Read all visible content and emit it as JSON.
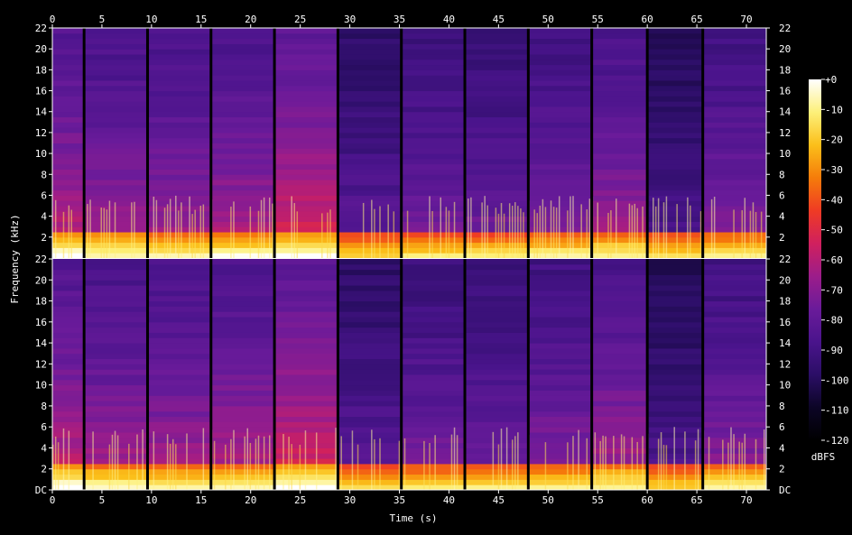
{
  "chart_data": {
    "type": "heatmap",
    "title": "",
    "xlabel": "Time (s)",
    "ylabel": "Frequency (kHz)",
    "colorbar_label": "dBFS",
    "x_range": [
      0,
      72
    ],
    "x_ticks": [
      0,
      5,
      10,
      15,
      20,
      25,
      30,
      35,
      40,
      45,
      50,
      55,
      60,
      65,
      70
    ],
    "x_tick_labels": [
      "0",
      "5",
      "10",
      "15",
      "20",
      "25",
      "30",
      "35",
      "40",
      "45",
      "50",
      "55",
      "60",
      "65",
      "70"
    ],
    "y_range_khz": [
      0,
      22
    ],
    "y_ticks": [
      0,
      2,
      4,
      6,
      8,
      10,
      12,
      14,
      16,
      18,
      20,
      22
    ],
    "y_tick_labels_top": [
      "",
      "2",
      "4",
      "6",
      "8",
      "10",
      "12",
      "14",
      "16",
      "18",
      "20",
      "22"
    ],
    "y_tick_labels_bottom": [
      "DC",
      "2",
      "4",
      "6",
      "8",
      "10",
      "12",
      "14",
      "16",
      "18",
      "20",
      "22"
    ],
    "channels": 2,
    "colorbar_range": [
      -120,
      0
    ],
    "colorbar_ticks": [
      0,
      -10,
      -20,
      -30,
      -40,
      -50,
      -60,
      -70,
      -80,
      -90,
      -100,
      -110,
      -120
    ],
    "colorbar_tick_labels": [
      "+0",
      "-10",
      "-20",
      "-30",
      "-40",
      "-50",
      "-60",
      "-70",
      "-80",
      "-90",
      "-100",
      "-110",
      "-120"
    ],
    "colormap_stops": [
      "#000000",
      "#0c0526",
      "#2b0e66",
      "#4a148c",
      "#6a1b9a",
      "#9c1d8a",
      "#d0205e",
      "#ef3b24",
      "#f57c0a",
      "#fbbf1a",
      "#fdf07a",
      "#ffffff"
    ],
    "segment_boundaries_s": [
      0,
      3.2,
      9.6,
      16.0,
      22.4,
      28.8,
      35.2,
      41.6,
      48.0,
      54.4,
      60.0,
      65.6,
      72.0
    ],
    "segments": [
      {
        "start": 0.0,
        "end": 3.2,
        "level": 0.55,
        "low_energy": 0.95
      },
      {
        "start": 3.2,
        "end": 9.6,
        "level": 0.5,
        "low_energy": 0.9
      },
      {
        "start": 9.6,
        "end": 16.0,
        "level": 0.5,
        "low_energy": 0.88
      },
      {
        "start": 16.0,
        "end": 22.4,
        "level": 0.52,
        "low_energy": 0.9
      },
      {
        "start": 22.4,
        "end": 28.8,
        "level": 0.6,
        "low_energy": 0.95
      },
      {
        "start": 28.8,
        "end": 35.2,
        "level": 0.35,
        "low_energy": 0.8
      },
      {
        "start": 35.2,
        "end": 41.6,
        "level": 0.42,
        "low_energy": 0.82
      },
      {
        "start": 41.6,
        "end": 48.0,
        "level": 0.4,
        "low_energy": 0.82
      },
      {
        "start": 48.0,
        "end": 54.4,
        "level": 0.45,
        "low_energy": 0.85
      },
      {
        "start": 54.4,
        "end": 60.0,
        "level": 0.5,
        "low_energy": 0.88
      },
      {
        "start": 60.0,
        "end": 65.6,
        "level": 0.3,
        "low_energy": 0.78
      },
      {
        "start": 65.6,
        "end": 72.0,
        "level": 0.45,
        "low_energy": 0.85
      }
    ]
  }
}
